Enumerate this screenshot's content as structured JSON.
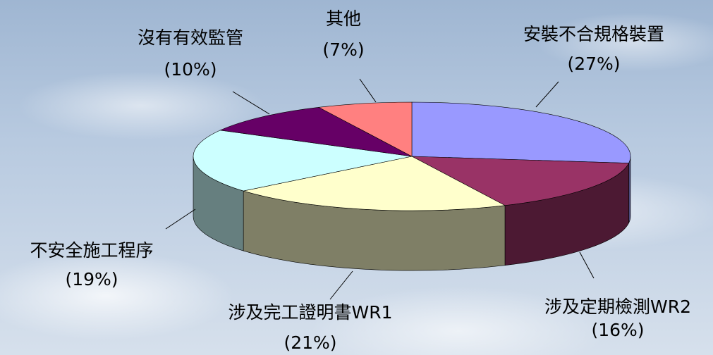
{
  "chart_data": {
    "type": "pie",
    "categories": [
      "安裝不合規格裝置",
      "涉及定期檢測WR2",
      "涉及完工證明書WR1",
      "不安全施工程序",
      "沒有有效監管",
      "其他"
    ],
    "values": [
      27,
      16,
      21,
      19,
      10,
      7
    ],
    "value_labels": [
      "(27%)",
      "(16%)",
      "(21%)",
      "(19%)",
      "(10%)",
      "(7%)"
    ],
    "colors": [
      "#9999ff",
      "#993366",
      "#ffffcc",
      "#ccffff",
      "#660066",
      "#ff8080"
    ]
  }
}
